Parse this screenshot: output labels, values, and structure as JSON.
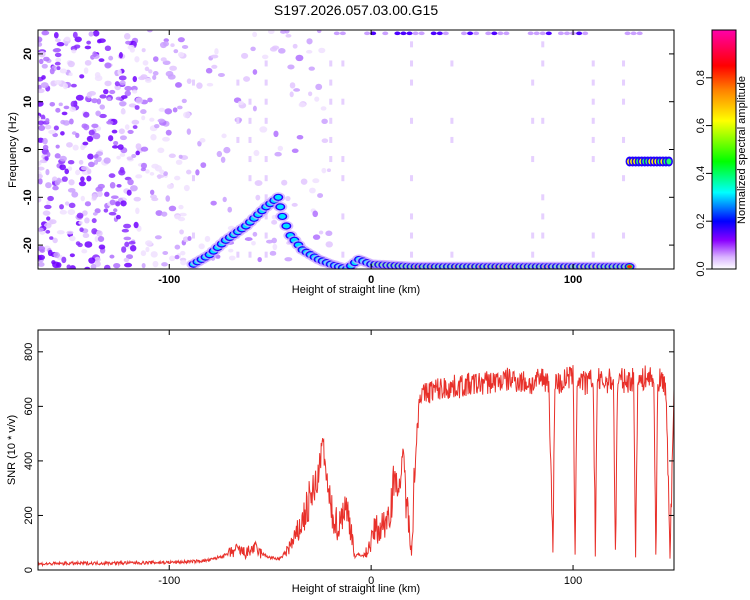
{
  "title": "S197.2026.057.03.00.G15",
  "top_panel": {
    "type": "heatmap",
    "xlabel": "Height of straight line (km)",
    "ylabel": "Frequency (Hz)",
    "xlim": [
      -165,
      150
    ],
    "ylim": [
      -25,
      25
    ],
    "xticks": [
      -100,
      0,
      100
    ],
    "yticks": [
      -20,
      -10,
      0,
      10,
      20
    ],
    "colorbar": {
      "label": "Normalized spectral amplitude",
      "range": [
        0,
        1
      ],
      "ticks": [
        "0.0",
        "0.2",
        "0.4",
        "0.6",
        "0.8"
      ],
      "colors": [
        "#ffffff",
        "#d9b3ff",
        "#8a00ff",
        "#0000ff",
        "#00ffff",
        "#00ff00",
        "#ffff00",
        "#ff8000",
        "#ff0000",
        "#ff00aa"
      ]
    },
    "ridge_points": [
      [
        -88,
        -24
      ],
      [
        -80,
        -22
      ],
      [
        -72,
        -19
      ],
      [
        -62,
        -16
      ],
      [
        -52,
        -12
      ],
      [
        -46,
        -10
      ],
      [
        -44,
        -14
      ],
      [
        -40,
        -18
      ],
      [
        -34,
        -21
      ],
      [
        -26,
        -23
      ],
      [
        -20,
        -24
      ],
      [
        -12,
        -25
      ],
      [
        -6,
        -23
      ],
      [
        0,
        -24
      ],
      [
        20,
        -24.5
      ],
      [
        60,
        -24.5
      ],
      [
        100,
        -24.5
      ],
      [
        130,
        -24.5
      ]
    ],
    "tone_segment": {
      "x_start": 128,
      "x_end": 148,
      "frequency": -2.5
    }
  },
  "chart_data": {
    "type": "line",
    "title": "S197.2026.057.03.00.G15",
    "xlabel": "Height of straight line (km)",
    "ylabel": "SNR (10 * v/v)",
    "xlim": [
      -165,
      150
    ],
    "ylim": [
      0,
      880
    ],
    "xticks": [
      -100,
      0,
      100
    ],
    "yticks": [
      0,
      200,
      400,
      600,
      800
    ],
    "color": "#e8302a",
    "series": [
      {
        "name": "SNR",
        "x": [
          -165,
          -150,
          -135,
          -120,
          -100,
          -90,
          -80,
          -72,
          -66,
          -62,
          -58,
          -55,
          -50,
          -45,
          -38,
          -34,
          -30,
          -27,
          -24,
          -22,
          -20,
          -18,
          -16,
          -14,
          -12,
          -10,
          -8,
          -6,
          -4,
          -2,
          0,
          2,
          4,
          6,
          8,
          10,
          12,
          14,
          16,
          18,
          20,
          22,
          24,
          26,
          30,
          40,
          50,
          60,
          70,
          80,
          85,
          88,
          90,
          91,
          92,
          94,
          96,
          100,
          101,
          102,
          104,
          106,
          110,
          111,
          112,
          114,
          116,
          120,
          121,
          122,
          124,
          126,
          130,
          131,
          132,
          134,
          136,
          140,
          141,
          142,
          144,
          146,
          148,
          150
        ],
        "values": [
          22,
          24,
          25,
          26,
          28,
          30,
          36,
          55,
          75,
          60,
          82,
          62,
          45,
          40,
          110,
          180,
          260,
          300,
          470,
          330,
          210,
          190,
          150,
          230,
          215,
          160,
          45,
          60,
          50,
          70,
          100,
          160,
          140,
          170,
          190,
          260,
          330,
          300,
          420,
          210,
          80,
          420,
          650,
          640,
          660,
          670,
          680,
          690,
          700,
          680,
          705,
          690,
          75,
          700,
          690,
          680,
          700,
          710,
          80,
          690,
          700,
          680,
          700,
          70,
          700,
          690,
          690,
          700,
          60,
          680,
          700,
          690,
          700,
          50,
          700,
          690,
          710,
          700,
          55,
          690,
          700,
          670,
          60,
          680
        ]
      }
    ]
  }
}
